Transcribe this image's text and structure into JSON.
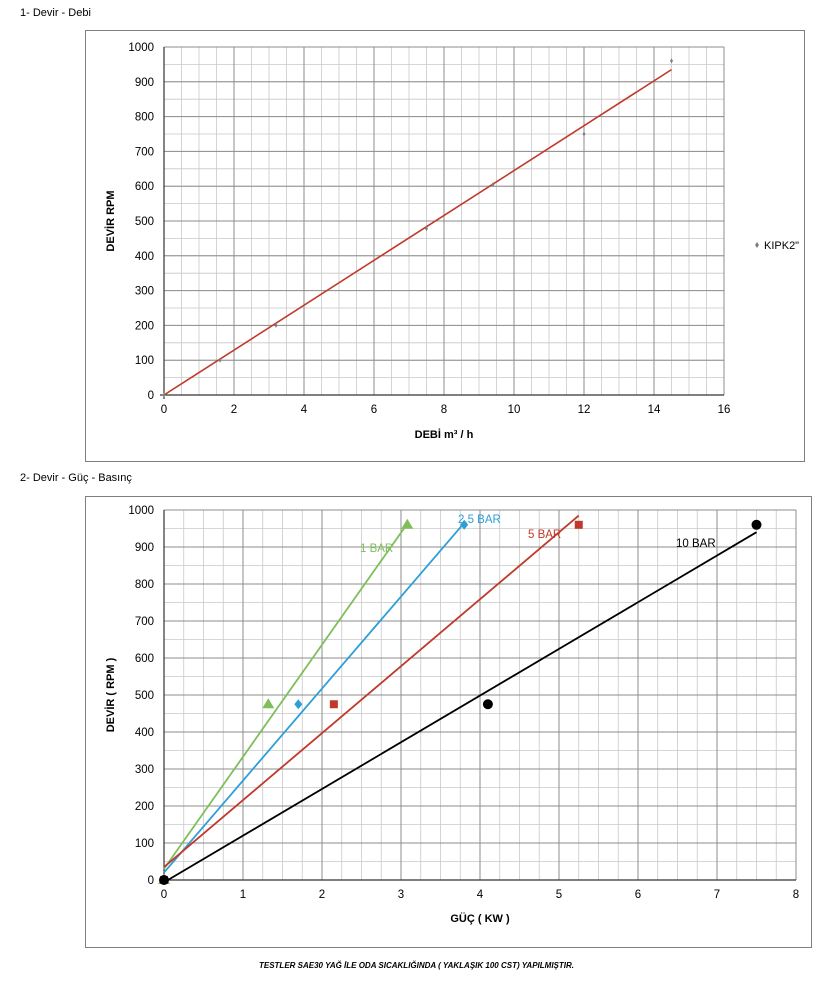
{
  "page": {
    "section1_title": "1- Devir - Debi",
    "section2_title": "2- Devir - Güç - Basınç",
    "footer_note": "TESTLER SAE30 YAĞ İLE ODA SICAKLIĞINDA ( YAKLAŞIK 100 CST) YAPILMIŞTIR."
  },
  "chart_data": [
    {
      "type": "scatter",
      "title": "",
      "xlabel": "DEBİ m³ / h",
      "ylabel": "DEVİR RPM",
      "xlim": [
        0,
        16
      ],
      "ylim": [
        0,
        1000
      ],
      "x_ticks": [
        0,
        2,
        4,
        6,
        8,
        10,
        12,
        14,
        16
      ],
      "y_ticks": [
        0,
        100,
        200,
        300,
        400,
        500,
        600,
        700,
        800,
        900,
        1000
      ],
      "grid": true,
      "legend_position": "right",
      "series": [
        {
          "name": "KIPK2\"",
          "color": "#7f7f7f",
          "marker": "diamond",
          "points": [
            [
              0,
              0
            ],
            [
              1.6,
              100
            ],
            [
              3.2,
              200
            ],
            [
              7.5,
              478
            ],
            [
              9.4,
              605
            ],
            [
              12,
              750
            ],
            [
              14.5,
              960
            ]
          ]
        }
      ],
      "trendlines": [
        {
          "color": "#c0392b",
          "from": [
            0,
            0
          ],
          "to": [
            14.5,
            935
          ]
        }
      ]
    },
    {
      "type": "scatter",
      "title": "",
      "xlabel": "GÜÇ ( KW )",
      "ylabel": "DEVİR ( RPM )",
      "xlim": [
        0,
        8
      ],
      "ylim": [
        0,
        1000
      ],
      "x_ticks": [
        0,
        1,
        2,
        3,
        4,
        5,
        6,
        7,
        8
      ],
      "y_ticks": [
        0,
        100,
        200,
        300,
        400,
        500,
        600,
        700,
        800,
        900,
        1000
      ],
      "grid": true,
      "series": [
        {
          "name": "1 BAR",
          "color": "#7fbf5a",
          "marker": "triangle",
          "points": [
            [
              0,
              0
            ],
            [
              1.32,
              475
            ],
            [
              3.08,
              960
            ]
          ],
          "line": {
            "from": [
              0,
              30
            ],
            "to": [
              3.07,
              960
            ]
          }
        },
        {
          "name": "2,5 BAR",
          "color": "#2e9fd6",
          "marker": "diamond",
          "points": [
            [
              0,
              0
            ],
            [
              1.7,
              475
            ],
            [
              3.8,
              960
            ]
          ],
          "line": {
            "from": [
              0,
              20
            ],
            "to": [
              3.8,
              965
            ]
          }
        },
        {
          "name": "5 BAR",
          "color": "#c0392b",
          "marker": "square",
          "points": [
            [
              0,
              0
            ],
            [
              2.15,
              475
            ],
            [
              5.25,
              960
            ]
          ],
          "line": {
            "from": [
              0,
              35
            ],
            "to": [
              5.25,
              985
            ]
          }
        },
        {
          "name": "10 BAR",
          "color": "#000000",
          "marker": "circle",
          "points": [
            [
              0,
              0
            ],
            [
              4.1,
              475
            ],
            [
              7.5,
              960
            ]
          ],
          "line": {
            "from": [
              0.05,
              0
            ],
            "to": [
              7.5,
              940
            ]
          }
        }
      ]
    }
  ]
}
